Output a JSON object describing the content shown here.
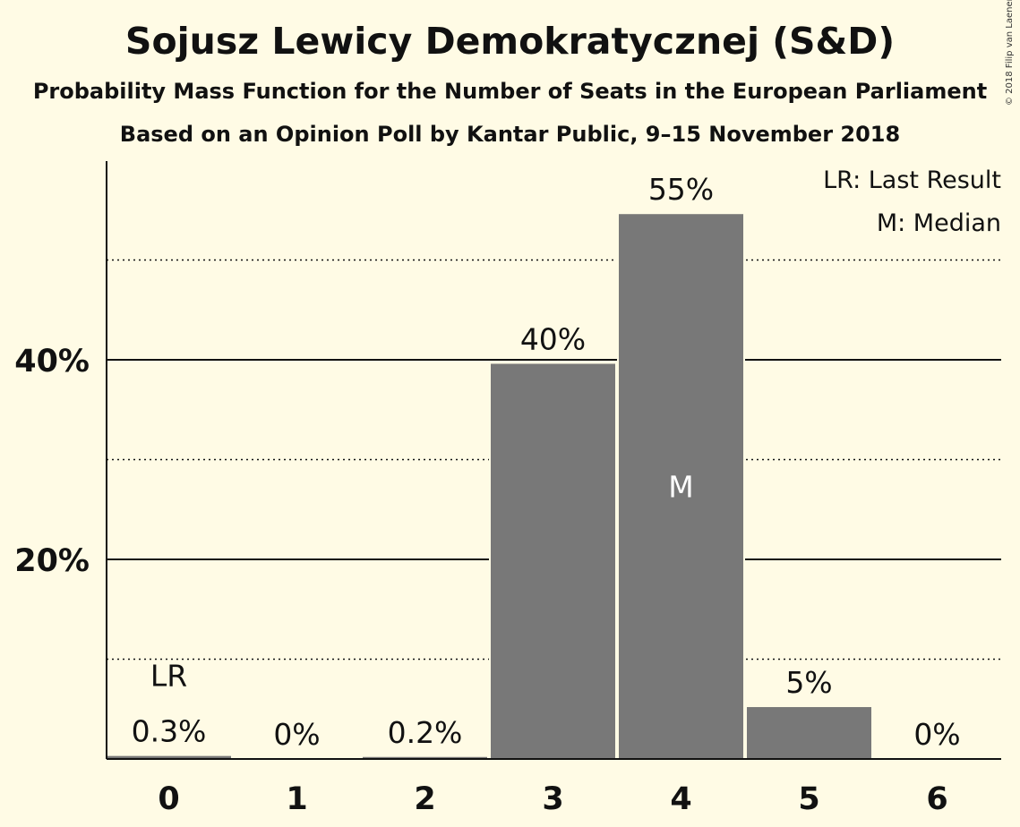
{
  "chart_data": {
    "type": "bar",
    "title": "Sojusz Lewicy Demokratycznej (S&D)",
    "subtitle": "Probability Mass Function for the Number of Seats in the European Parliament",
    "subtitle2": "Based on an Opinion Poll by Kantar Public, 9–15 November 2018",
    "copyright": "© 2018 Filip van Laenen",
    "categories": [
      "0",
      "1",
      "2",
      "3",
      "4",
      "5",
      "6"
    ],
    "values": [
      0.3,
      0.01,
      0.2,
      39.6,
      54.6,
      5.2,
      0.01
    ],
    "data_labels": [
      "0.3%",
      "0%",
      "0.2%",
      "40%",
      "55%",
      "5%",
      "0%"
    ],
    "y_ticks": [
      20,
      40
    ],
    "y_tick_labels": [
      "20%",
      "40%"
    ],
    "minor_gridlines": [
      10,
      30,
      50
    ],
    "ylim": [
      0,
      60
    ],
    "last_result_index": 0,
    "last_result_label": "LR",
    "median_index": 4,
    "median_label": "M",
    "legend": [
      "LR: Last Result",
      "M: Median"
    ],
    "legend_position": "top-right",
    "bar_color": "#787878",
    "background_color": "#fffbe5"
  }
}
